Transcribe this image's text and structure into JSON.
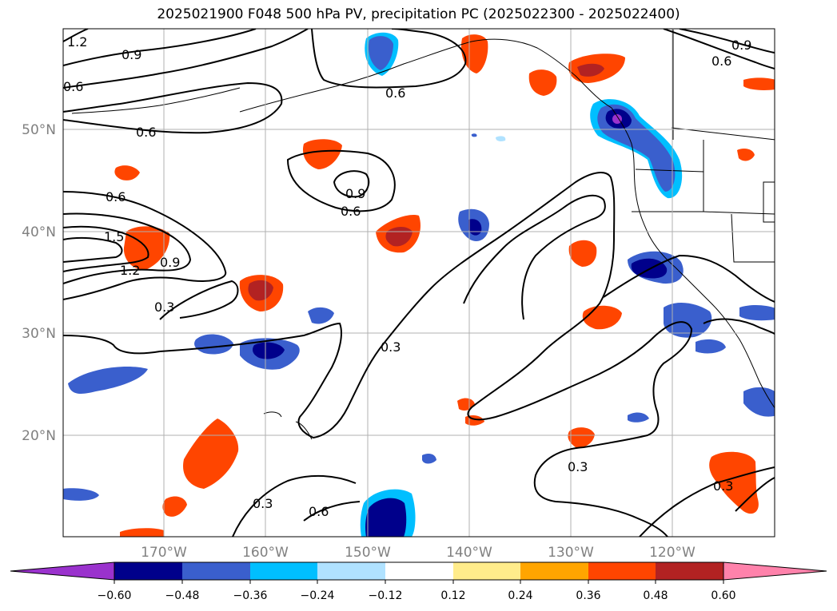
{
  "title": "2025021900 F048 500 hPa PV, precipitation PC (2025022300 - 2025022400)",
  "lat_labels": [
    "50°N",
    "40°N",
    "30°N",
    "20°N"
  ],
  "lon_labels": [
    "170°W",
    "160°W",
    "150°W",
    "140°W",
    "130°W",
    "120°W"
  ],
  "contour_labels": [
    "1.2",
    "0.9",
    "0.6",
    "0.6",
    "0.6",
    "0.6",
    "0.9",
    "0.6",
    "1.5",
    "1.2",
    "0.9",
    "0.3",
    "0.3",
    "0.3",
    "0.3",
    "0.6",
    "0.9",
    "0.6"
  ],
  "colorbar": {
    "colors": [
      "#9a32cd",
      "#00008b",
      "#3a5fcd",
      "#00bfff",
      "#b0e2ff",
      "#ffffff",
      "#ffec8b",
      "#ffa500",
      "#ff4500",
      "#b22222",
      "#ff82ab"
    ],
    "tick_labels": [
      "−0.60",
      "−0.48",
      "−0.36",
      "−0.24",
      "−0.12",
      "0.12",
      "0.24",
      "0.36",
      "0.48",
      "0.60"
    ]
  }
}
